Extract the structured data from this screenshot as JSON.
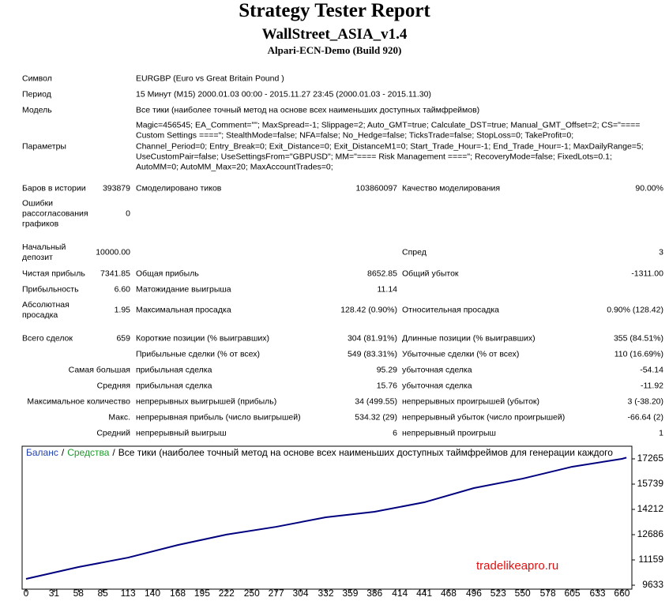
{
  "header": {
    "title": "Strategy Tester Report",
    "subtitle": "WallStreet_ASIA_v1.4",
    "server": "Alpari-ECN-Demo (Build 920)"
  },
  "rows": [
    {
      "l1": "Символ",
      "l2": "EURGBP (Euro vs Great Britain Pound )"
    },
    {
      "l1": "Период",
      "l2": "15 Минут (M15) 2000.01.03 00:00 - 2015.11.27 23:45 (2000.01.03 - 2015.11.30)"
    },
    {
      "l1": "Модель",
      "l2": "Все тики (наиболее точный метод на основе всех наименьших доступных таймфреймов)"
    },
    {
      "l1": "Параметры",
      "l2": [
        "Magic=456545; EA_Comment=\"\"; MaxSpread=-1; Slippage=2; Auto_GMT=true; Calculate_DST=true; Manual_GMT_Offset=2; CS=\"====",
        "Custom Settings ====\"; StealthMode=false; NFA=false; No_Hedge=false; TicksTrade=false; StopLoss=0; TakeProfit=0;",
        "Channel_Period=0; Entry_Break=0; Exit_Distance=0; Exit_DistanceM1=0; Start_Trade_Hour=-1; End_Trade_Hour=-1; MaxDailyRange=5;",
        "UseCustomPair=false; UseSettingsFrom=\"GBPUSD\"; MM=\"==== Risk Management ====\"; RecoveryMode=false; FixedLots=0.1;",
        "AutoMM=0; AutoMM_Max=20; MaxAccountTrades=0;"
      ]
    },
    {
      "l1": "Баров в истории",
      "v1": "393879",
      "l2": "Смоделировано тиков",
      "v2": "103860097",
      "l3": "Качество моделирования",
      "v3": "90.00%"
    },
    {
      "l1": "Ошибки рассогласования графиков",
      "v1": "0"
    },
    {
      "l1": "Начальный депозит",
      "v1": "10000.00",
      "l3": "Спред",
      "v3": "3"
    },
    {
      "l1": "Чистая прибыль",
      "v1": "7341.85",
      "l2": "Общая прибыль",
      "v2": "8652.85",
      "l3": "Общий убыток",
      "v3": "-1311.00"
    },
    {
      "l1": "Прибыльность",
      "v1": "6.60",
      "l2": "Матожидание выигрыша",
      "v2": "11.14"
    },
    {
      "l1": "Абсолютная просадка",
      "v1": "1.95",
      "l2": "Максимальная просадка",
      "v2": "128.42 (0.90%)",
      "l3": "Относительная просадка",
      "v3": "0.90% (128.42)"
    },
    {
      "l1": "Всего сделок",
      "v1": "659",
      "l2": "Короткие позиции (% выигравших)",
      "v2": "304 (81.91%)",
      "l3": "Длинные позиции (% выигравших)",
      "v3": "355 (84.51%)"
    },
    {
      "l2": "Прибыльные сделки (% от всех)",
      "v2": "549 (83.31%)",
      "l3": "Убыточные сделки (% от всех)",
      "v3": "110 (16.69%)"
    },
    {
      "l1": "Самая большая",
      "l2": "прибыльная сделка",
      "v2": "95.29",
      "l3": "убыточная сделка",
      "v3": "-54.14"
    },
    {
      "l1": "Средняя",
      "l2": "прибыльная сделка",
      "v2": "15.76",
      "l3": "убыточная сделка",
      "v3": "-11.92"
    },
    {
      "l1": "Максимальное количество",
      "l2": "непрерывных выигрышей (прибыль)",
      "v2": "34 (499.55)",
      "l3": "непрерывных проигрышей (убыток)",
      "v3": "3 (-38.20)"
    },
    {
      "l1": "Макс.",
      "l2": "непрерывная прибыль (число выигрышей)",
      "v2": "534.32 (29)",
      "l3": "непрерывный убыток (число проигрышей)",
      "v3": "-66.64 (2)"
    },
    {
      "l1": "Средний",
      "l2": "непрерывный выигрыш",
      "v2": "6",
      "l3": "непрерывный проигрыш",
      "v3": "1"
    }
  ],
  "chart_data": {
    "type": "line",
    "legend": [
      {
        "text": "Баланс",
        "color": "#1f3fb4"
      },
      {
        "text": "Средства",
        "color": "#1e9a2c"
      },
      {
        "text": "Все тики (наиболее точный метод на основе всех наименьших доступных таймфреймов для генерации каждого",
        "color": "#000000"
      }
    ],
    "legend_separator": "/",
    "watermark": "tradelikeapro.ru",
    "x": [
      0,
      58,
      113,
      168,
      222,
      277,
      332,
      386,
      441,
      496,
      550,
      605,
      660,
      665
    ],
    "series": [
      {
        "name": "Баланс",
        "color": "#00007f",
        "values": [
          10015,
          10730,
          11300,
          12060,
          12690,
          13160,
          13735,
          14070,
          14640,
          15500,
          16070,
          16790,
          17265,
          17340
        ]
      }
    ],
    "xlim": [
      0,
      671
    ],
    "ylim": [
      9633,
      17265
    ],
    "xticks": [
      0,
      31,
      58,
      85,
      113,
      140,
      168,
      195,
      222,
      250,
      277,
      304,
      332,
      359,
      386,
      414,
      441,
      468,
      496,
      523,
      550,
      578,
      605,
      633,
      660
    ],
    "yticks": [
      9633,
      11159,
      12686,
      14212,
      15739,
      17265
    ]
  }
}
